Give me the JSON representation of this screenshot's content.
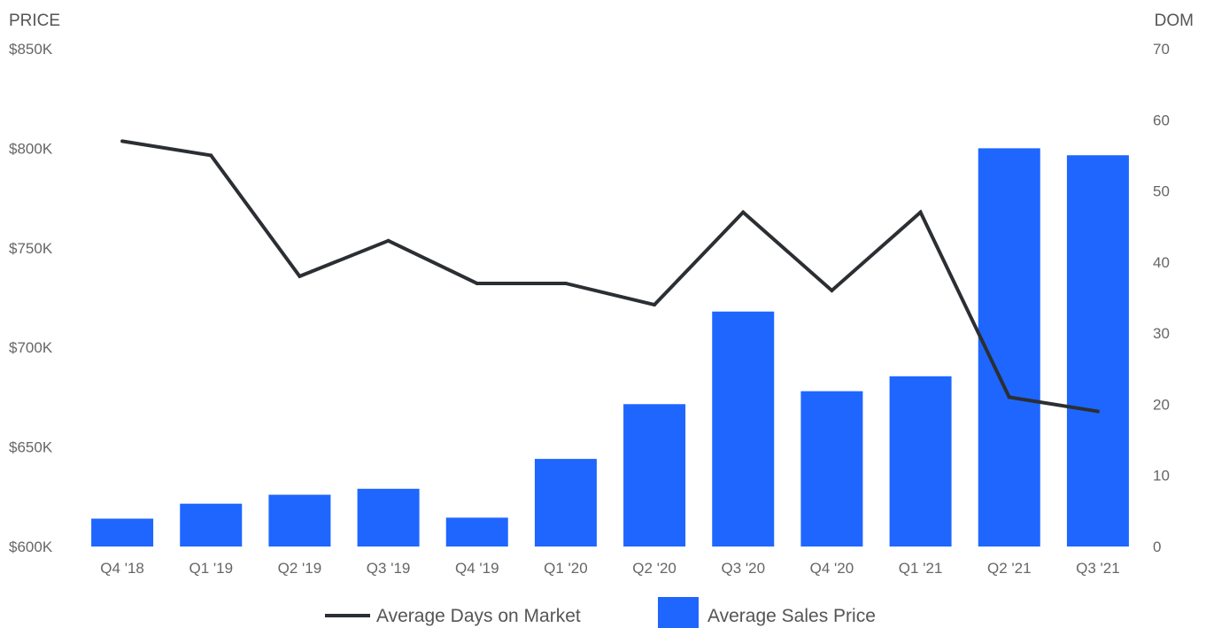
{
  "chart_data": {
    "type": "bar",
    "categories": [
      "Q4 '18",
      "Q1 '19",
      "Q2 '19",
      "Q3 '19",
      "Q4 '19",
      "Q1 '20",
      "Q2 '20",
      "Q3 '20",
      "Q4 '20",
      "Q1 '21",
      "Q2 '21",
      "Q3 '21"
    ],
    "series": [
      {
        "name": "Average Sales Price",
        "kind": "bar",
        "axis": "left",
        "color": "#1f66ff",
        "values": [
          614000,
          621500,
          626000,
          629000,
          614500,
          644000,
          671500,
          718000,
          678000,
          685500,
          800000,
          796500
        ]
      },
      {
        "name": "Average Days on Market",
        "kind": "line",
        "axis": "right",
        "color": "#2b2f33",
        "values": [
          57,
          55,
          38,
          43,
          37,
          37,
          34,
          47,
          36,
          47,
          21,
          19
        ]
      }
    ],
    "y_left": {
      "label": "PRICE",
      "ylim": [
        600000,
        850000
      ],
      "ticks": [
        600000,
        650000,
        700000,
        750000,
        800000,
        850000
      ],
      "tick_labels": [
        "$600K",
        "$650K",
        "$700K",
        "$750K",
        "$800K",
        "$850K"
      ]
    },
    "y_right": {
      "label": "DOM",
      "ylim": [
        0,
        70
      ],
      "ticks": [
        0,
        10,
        20,
        30,
        40,
        50,
        60,
        70
      ],
      "tick_labels": [
        "0",
        "10",
        "20",
        "30",
        "40",
        "50",
        "60",
        "70"
      ]
    },
    "grid": false,
    "legend": {
      "position": "bottom",
      "items": [
        {
          "label": "Average Days on Market",
          "symbol": "line",
          "color": "#2b2f33"
        },
        {
          "label": "Average Sales Price",
          "symbol": "box",
          "color": "#1f66ff"
        }
      ]
    }
  }
}
